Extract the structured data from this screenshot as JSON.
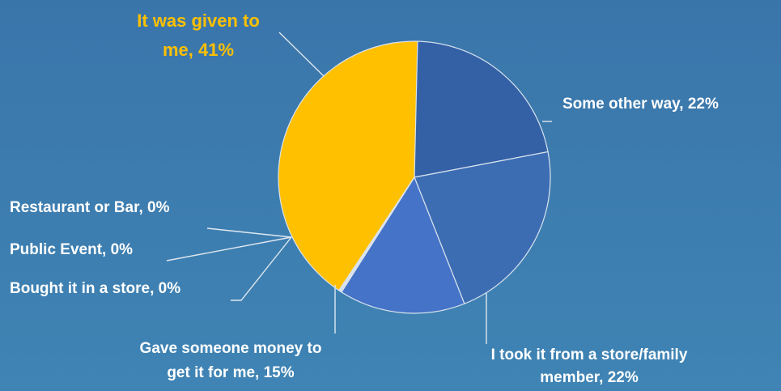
{
  "chart_data": {
    "type": "pie",
    "start_angle_deg": 0,
    "direction": "clockwise",
    "slices": [
      {
        "name": "Some other way",
        "value": 22,
        "label_lines": [
          "Some other way, 22%"
        ],
        "color": "#3461a6"
      },
      {
        "name": "I took it from a store/family member",
        "value": 22,
        "label_lines": [
          "I took it from a store/family",
          "member, 22%"
        ],
        "color": "#3c6db3"
      },
      {
        "name": "Gave someone money to get it for me",
        "value": 15,
        "label_lines": [
          "Gave someone money to",
          "get it for me, 15%"
        ],
        "color": "#4573c7"
      },
      {
        "name": "Bought it in a store",
        "value": 0,
        "label_lines": [
          "Bought it in a store, 0%"
        ],
        "color": "#5a86d0"
      },
      {
        "name": "Public Event",
        "value": 0,
        "label_lines": [
          "Public Event, 0%"
        ],
        "color": "#9ab0d6"
      },
      {
        "name": "Restaurant or Bar",
        "value": 0,
        "label_lines": [
          "Restaurant or Bar, 0%"
        ],
        "color": "#c4cfdf"
      },
      {
        "name": "It was given to me",
        "value": 41,
        "label_lines": [
          "It was given to",
          "me, 41%"
        ],
        "color": "#ffc000",
        "highlight": true
      }
    ]
  }
}
